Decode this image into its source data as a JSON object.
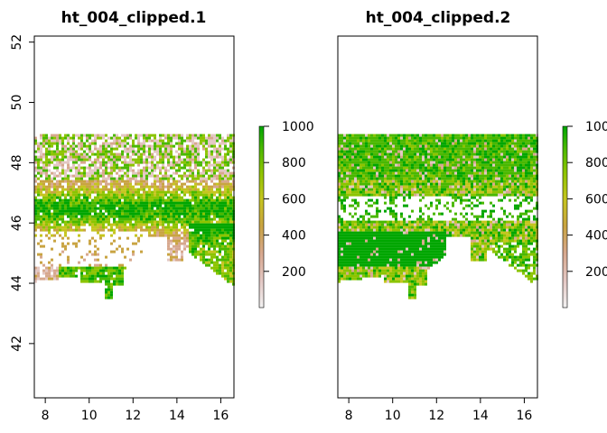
{
  "chart_data": [
    {
      "type": "heatmap",
      "title": "ht_004_clipped.1",
      "xlabel": "",
      "ylabel": "",
      "xlim": [
        7.5,
        16.6
      ],
      "ylim": [
        40.2,
        52.2
      ],
      "x_ticks": [
        8,
        10,
        12,
        14,
        16
      ],
      "y_ticks": [
        42,
        44,
        46,
        48,
        50,
        52
      ],
      "extent": {
        "xmin": 7.5,
        "xmax": 16.6,
        "ymin": 43.5,
        "ymax": 48.95
      },
      "legend": {
        "ticks": [
          200,
          400,
          600,
          800,
          1000
        ],
        "min": 0,
        "max": 1000,
        "position": "right"
      },
      "pattern": "sparse-mountains"
    },
    {
      "type": "heatmap",
      "title": "ht_004_clipped.2",
      "xlabel": "",
      "ylabel": "",
      "xlim": [
        7.5,
        16.6
      ],
      "ylim": [
        40.2,
        52.2
      ],
      "x_ticks": [
        8,
        10,
        12,
        14,
        16
      ],
      "y_ticks": [],
      "extent": {
        "xmin": 7.5,
        "xmax": 16.6,
        "ymin": 43.5,
        "ymax": 48.95
      },
      "legend": {
        "ticks": [
          200,
          400,
          600,
          800,
          1000
        ],
        "min": 0,
        "max": 1000,
        "position": "right"
      },
      "pattern": "dense-lowlands"
    }
  ],
  "colors": {
    "ramp": [
      "#f2f2f2",
      "#e3c7c3",
      "#d7a88e",
      "#c9a442",
      "#c5c51f",
      "#8cc400",
      "#4ab800",
      "#00a600"
    ],
    "sea": "#ffffff"
  }
}
